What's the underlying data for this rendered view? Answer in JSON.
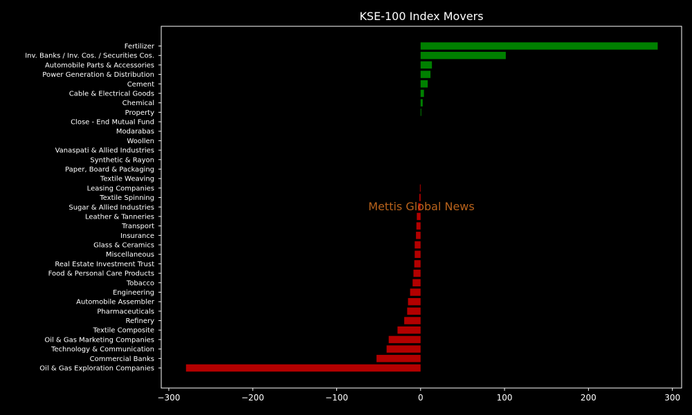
{
  "chart_data": {
    "type": "bar",
    "orientation": "horizontal",
    "title": "KSE-100 Index Movers",
    "xlabel": "",
    "ylabel": "",
    "xlim": [
      -309,
      311
    ],
    "xticks": [
      -300,
      -200,
      -100,
      0,
      100,
      200,
      300
    ],
    "xtick_labels": [
      "−300",
      "−200",
      "−100",
      "0",
      "100",
      "200",
      "300"
    ],
    "watermark": "Mettis Global News",
    "grid": false,
    "colors": {
      "positive": "#008000",
      "negative": "#b30000",
      "background": "#000000",
      "axes": "#ffffff",
      "watermark": "#b8621b"
    },
    "categories": [
      "Fertilizer",
      "Inv. Banks / Inv. Cos. / Securities Cos.",
      "Automobile Parts & Accessories",
      "Power Generation & Distribution",
      "Cement",
      "Cable & Electrical Goods",
      "Chemical",
      "Property",
      "Close - End Mutual Fund",
      "Modarabas",
      "Woollen",
      "Vanaspati & Allied Industries",
      "Synthetic & Rayon",
      "Paper, Board & Packaging",
      "Textile Weaving",
      "Leasing Companies",
      "Textile Spinning",
      "Sugar & Allied Industries",
      "Leather & Tanneries",
      "Transport",
      "Insurance",
      "Glass & Ceramics",
      "Miscellaneous",
      "Real Estate Investment Trust",
      "Food & Personal Care Products",
      "Tobacco",
      "Engineering",
      "Automobile Assembler",
      "Pharmaceuticals",
      "Refinery",
      "Textile Composite",
      "Oil & Gas Marketing Companies",
      "Technology & Communication",
      "Commercial Banks",
      "Oil & Gas Exploration Companies"
    ],
    "values": [
      282.5,
      101.5,
      13.5,
      11.8,
      8.5,
      4.0,
      2.5,
      0.8,
      0,
      0,
      0,
      0,
      0,
      0,
      0,
      -0.8,
      -1.5,
      -3,
      -4.5,
      -5,
      -5.5,
      -7,
      -7,
      -7.5,
      -8.5,
      -9.5,
      -12.5,
      -15,
      -16,
      -19.5,
      -27.5,
      -38,
      -40.5,
      -52.5,
      -279.5
    ]
  }
}
